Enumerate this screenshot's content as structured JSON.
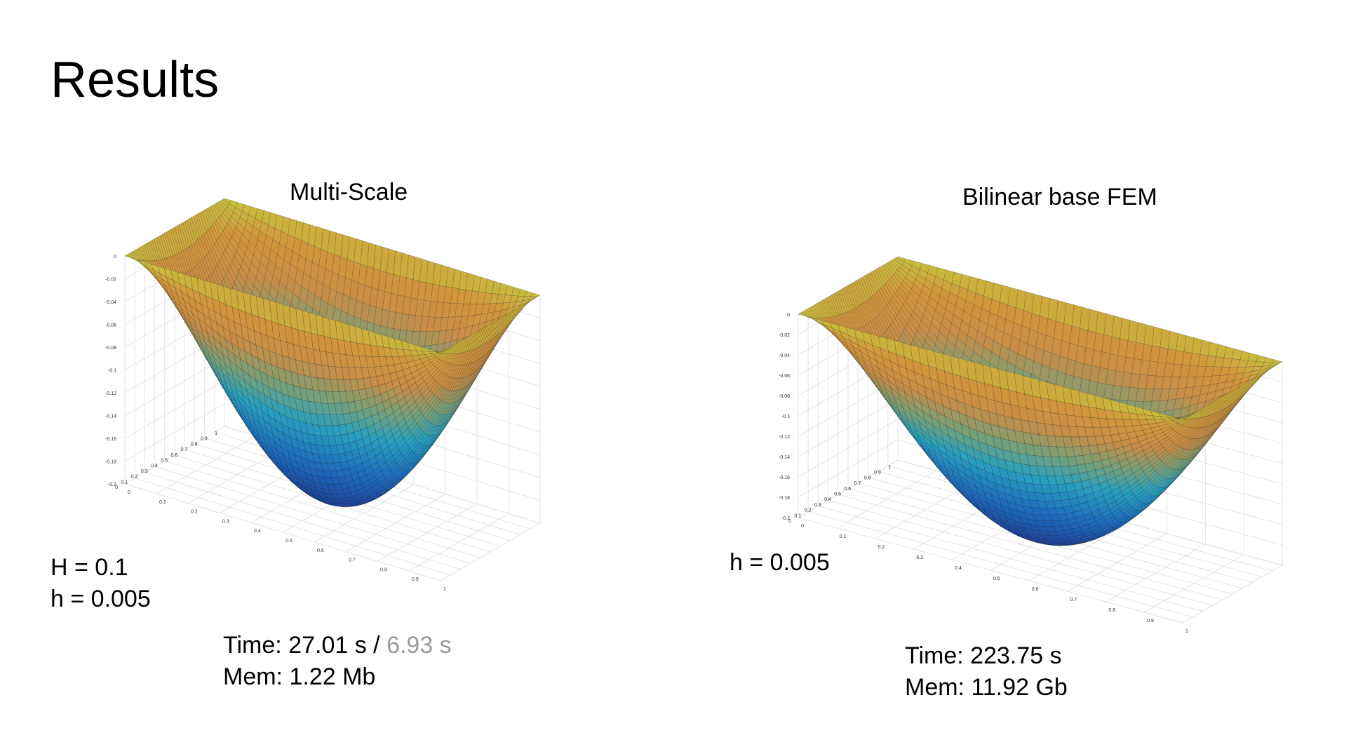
{
  "slide": {
    "title": "Results"
  },
  "left_figure": {
    "title": "Multi-Scale",
    "params": [
      "H = 0.1",
      "h = 0.005"
    ],
    "time_label": "Time: 27.01 s /",
    "time_secondary": "6.93 s",
    "mem_label": "Mem: 1.22 Mb"
  },
  "right_figure": {
    "title": "Bilinear base FEM",
    "params": [
      "h = 0.005"
    ],
    "time_label": "Time: 223.75 s",
    "mem_label": "Mem: 11.92 Gb"
  },
  "chart_data": [
    {
      "type": "surface",
      "title": "Multi-Scale",
      "x_ticks": [
        "0",
        "0.1",
        "0.2",
        "0.3",
        "0.4",
        "0.5",
        "0.6",
        "0.7",
        "0.8",
        "0.9",
        "1"
      ],
      "y_ticks": [
        "0",
        "0.1",
        "0.2",
        "0.3",
        "0.4",
        "0.5",
        "0.6",
        "0.7",
        "0.8",
        "0.9",
        "1"
      ],
      "z_ticks": [
        "0",
        "-0.02",
        "-0.04",
        "-0.06",
        "-0.08",
        "-0.1",
        "-0.12",
        "-0.14",
        "-0.16",
        "-0.18",
        "-0.2"
      ],
      "xlim": [
        0,
        1
      ],
      "ylim": [
        0,
        1
      ],
      "zlim": [
        -0.2,
        0
      ],
      "z_min": -0.2,
      "colormap": "parula",
      "grid": true
    },
    {
      "type": "surface",
      "title": "Bilinear base FEM",
      "x_ticks": [
        "0",
        "0.1",
        "0.2",
        "0.3",
        "0.4",
        "0.5",
        "0.6",
        "0.7",
        "0.8",
        "0.9",
        "1"
      ],
      "y_ticks": [
        "0",
        "0.1",
        "0.2",
        "0.3",
        "0.4",
        "0.5",
        "0.6",
        "0.7",
        "0.8",
        "0.9",
        "1"
      ],
      "z_ticks": [
        "0",
        "-0.02",
        "-0.04",
        "-0.06",
        "-0.08",
        "-0.1",
        "-0.12",
        "-0.14",
        "-0.16",
        "-0.18",
        "-0.2"
      ],
      "xlim": [
        0,
        1
      ],
      "ylim": [
        0,
        1
      ],
      "zlim": [
        -0.2,
        0
      ],
      "z_min": -0.2,
      "colormap": "parula",
      "grid": true
    }
  ]
}
